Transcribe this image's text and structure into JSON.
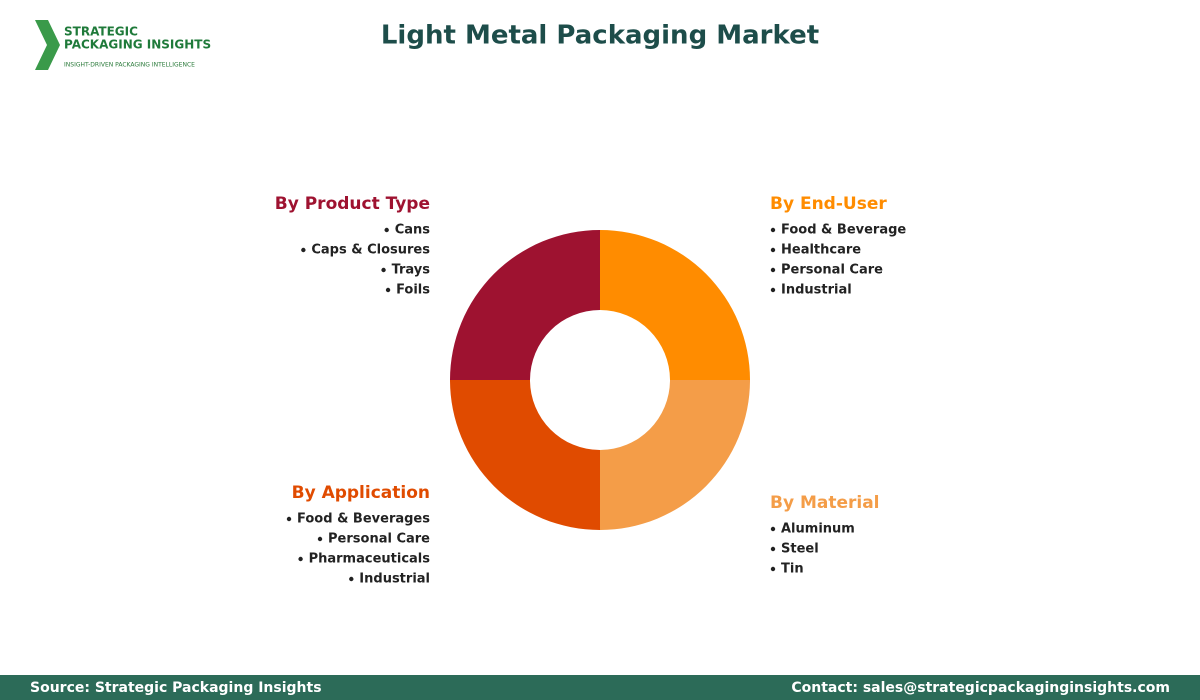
{
  "logo": {
    "line1": "STRATEGIC",
    "line2": "PACKAGING INSIGHTS",
    "tagline": "INSIGHT-DRIVEN PACKAGING INTELLIGENCE"
  },
  "title": "Light Metal Packaging Market",
  "segments": [
    {
      "title": "By Product Type",
      "color": "#9e1230",
      "items": [
        "Cans",
        "Caps & Closures",
        "Trays",
        "Foils"
      ]
    },
    {
      "title": "By End-User",
      "color": "#ff8c00",
      "items": [
        "Food & Beverage",
        "Healthcare",
        "Personal Care",
        "Industrial"
      ]
    },
    {
      "title": "By Material",
      "color": "#f49d48",
      "items": [
        "Aluminum",
        "Steel",
        "Tin"
      ]
    },
    {
      "title": "By Application",
      "color": "#e04b00",
      "items": [
        "Food & Beverages",
        "Personal Care",
        "Pharmaceuticals",
        "Industrial"
      ]
    }
  ],
  "footer": {
    "source": "Source: Strategic Packaging Insights",
    "contact": "Contact: sales@strategicpackaginginsights.com"
  }
}
